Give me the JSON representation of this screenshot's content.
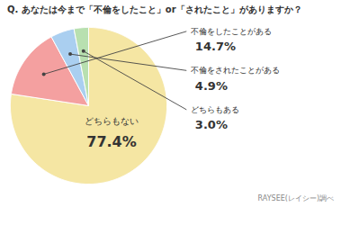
{
  "chart_data": {
    "type": "pie",
    "title": "Q. あなたは今まで「不倫をしたこと」or「されたこと」がありますか？",
    "caption": "RAYSEE(レイシー)調べ",
    "categories": [
      "どちらもない",
      "不倫をしたことがある",
      "不倫をされたことがある",
      "どちらもある"
    ],
    "values": [
      77.4,
      14.7,
      4.9,
      3.0
    ],
    "value_labels": [
      "77.4%",
      "14.7%",
      "4.9%",
      "3.0%"
    ],
    "colors": [
      "#f5e6a3",
      "#f4a0a0",
      "#aacff0",
      "#b8e0b0"
    ],
    "data_labels": true
  }
}
